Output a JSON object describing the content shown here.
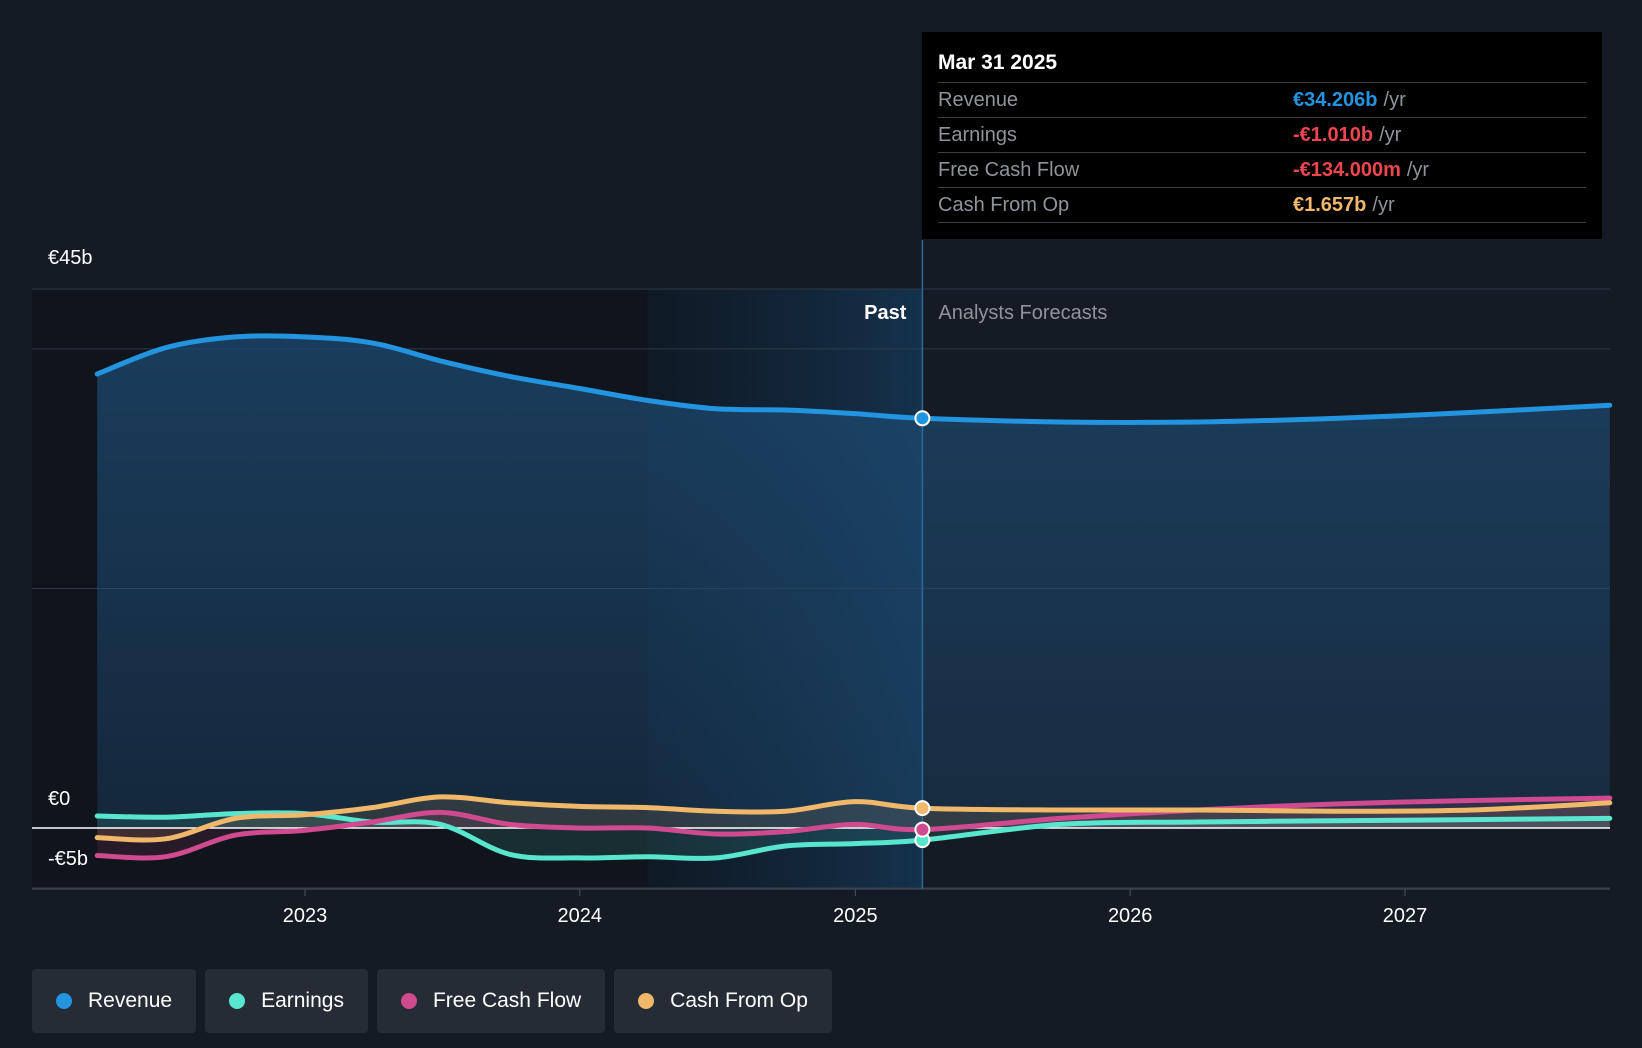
{
  "chart_data": {
    "type": "line",
    "y_unit": "€",
    "ylim": [
      -5,
      45
    ],
    "y_ticks": [
      "€45b",
      "€0",
      "-€5b"
    ],
    "x_ticks": [
      "2023",
      "2024",
      "2025",
      "2026",
      "2027"
    ],
    "past_label": "Past",
    "forecast_label": "Analysts Forecasts",
    "divider_date": "2025-03-31",
    "series": [
      {
        "name": "Revenue",
        "color": "#2394df",
        "x": [
          "2022-03-31",
          "2022-06-30",
          "2022-09-30",
          "2022-12-31",
          "2023-03-31",
          "2023-06-30",
          "2023-09-30",
          "2023-12-31",
          "2024-03-31",
          "2024-06-30",
          "2024-09-30",
          "2024-12-31",
          "2025-03-31",
          "2025-09-30",
          "2026-03-31",
          "2026-09-30",
          "2027-03-31",
          "2027-09-30"
        ],
        "values": [
          37.9,
          40.1,
          41.0,
          41.0,
          40.5,
          39.0,
          37.7,
          36.7,
          35.7,
          35.0,
          34.9,
          34.6,
          34.206,
          33.9,
          33.9,
          34.2,
          34.7,
          35.3
        ]
      },
      {
        "name": "Earnings",
        "color": "#58e6cf",
        "x": [
          "2022-03-31",
          "2022-06-30",
          "2022-09-30",
          "2022-12-31",
          "2023-03-31",
          "2023-06-30",
          "2023-09-30",
          "2023-12-31",
          "2024-03-31",
          "2024-06-30",
          "2024-09-30",
          "2024-12-31",
          "2025-03-31",
          "2025-09-30",
          "2026-03-31",
          "2026-09-30",
          "2027-03-31",
          "2027-09-30"
        ],
        "values": [
          1.0,
          0.9,
          1.2,
          1.2,
          0.5,
          0.3,
          -2.2,
          -2.5,
          -2.4,
          -2.5,
          -1.5,
          -1.3,
          -1.01,
          0.3,
          0.5,
          0.6,
          0.7,
          0.8
        ]
      },
      {
        "name": "Free Cash Flow",
        "color": "#cf4a8f",
        "x": [
          "2022-03-31",
          "2022-06-30",
          "2022-09-30",
          "2022-12-31",
          "2023-03-31",
          "2023-06-30",
          "2023-09-30",
          "2023-12-31",
          "2024-03-31",
          "2024-06-30",
          "2024-09-30",
          "2024-12-31",
          "2025-03-31",
          "2025-09-30",
          "2026-03-31",
          "2026-09-30",
          "2027-03-31",
          "2027-09-30"
        ],
        "values": [
          -2.3,
          -2.4,
          -0.6,
          -0.2,
          0.5,
          1.3,
          0.3,
          0.0,
          0.0,
          -0.5,
          -0.3,
          0.3,
          -0.134,
          0.8,
          1.5,
          2.0,
          2.3,
          2.5
        ]
      },
      {
        "name": "Cash From Op",
        "color": "#f0b86a",
        "x": [
          "2022-03-31",
          "2022-06-30",
          "2022-09-30",
          "2022-12-31",
          "2023-03-31",
          "2023-06-30",
          "2023-09-30",
          "2023-12-31",
          "2024-03-31",
          "2024-06-30",
          "2024-09-30",
          "2024-12-31",
          "2025-03-31",
          "2025-09-30",
          "2026-03-31",
          "2026-09-30",
          "2027-03-31",
          "2027-09-30"
        ],
        "values": [
          -0.8,
          -0.9,
          0.8,
          1.1,
          1.7,
          2.6,
          2.1,
          1.8,
          1.7,
          1.4,
          1.4,
          2.2,
          1.657,
          1.5,
          1.5,
          1.4,
          1.5,
          2.1
        ]
      }
    ]
  },
  "tooltip": {
    "date": "Mar 31 2025",
    "rows": [
      {
        "label": "Revenue",
        "value": "€34.206b",
        "unit": "/yr",
        "color": "#2394df"
      },
      {
        "label": "Earnings",
        "value": "-€1.010b",
        "unit": "/yr",
        "color": "#ee4650"
      },
      {
        "label": "Free Cash Flow",
        "value": "-€134.000m",
        "unit": "/yr",
        "color": "#ee4650"
      },
      {
        "label": "Cash From Op",
        "value": "€1.657b",
        "unit": "/yr",
        "color": "#f0b86a"
      }
    ]
  },
  "legend": [
    {
      "label": "Revenue",
      "color": "#2394df"
    },
    {
      "label": "Earnings",
      "color": "#58e6cf"
    },
    {
      "label": "Free Cash Flow",
      "color": "#cf4a8f"
    },
    {
      "label": "Cash From Op",
      "color": "#f0b86a"
    }
  ]
}
